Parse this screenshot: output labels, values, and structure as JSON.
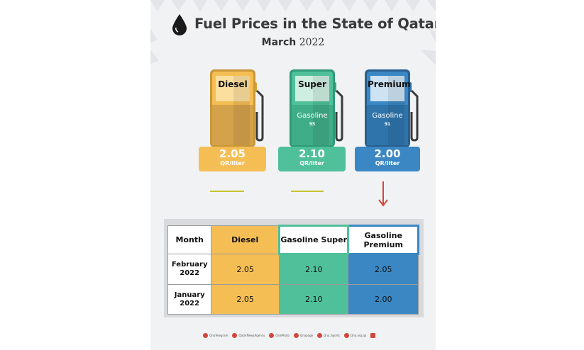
{
  "header": {
    "title": "Fuel Prices in the State of Qatar",
    "month": "March",
    "year": "2022"
  },
  "pumps": [
    {
      "name": "Diesel",
      "sub": "",
      "octane": "",
      "price": "2.05",
      "unit": "QR/liter",
      "color": "#f5be55"
    },
    {
      "name": "Super",
      "sub": "Gasoline",
      "octane": "95",
      "price": "2.10",
      "unit": "QR/liter",
      "color": "#4fc09a"
    },
    {
      "name": "Premium",
      "sub": "Gasoline",
      "octane": "91",
      "price": "2.00",
      "unit": "QR/liter",
      "color": "#3a87c3"
    }
  ],
  "table": {
    "headers": [
      "Month",
      "Diesel",
      "Gasoline Super",
      "Gasoline Premium"
    ],
    "rows": [
      {
        "month_line1": "February",
        "month_line2": "2022",
        "diesel": "2.05",
        "super": "2.10",
        "premium": "2.05"
      },
      {
        "month_line1": "January",
        "month_line2": "2022",
        "diesel": "2.05",
        "super": "2.10",
        "premium": "2.00"
      }
    ]
  },
  "trend": {
    "premium_direction": "down",
    "arrow_color": "#d2473d"
  },
  "social": [
    {
      "icon": "telegram-icon",
      "label": "QnaTelegram"
    },
    {
      "icon": "twitter-icon",
      "label": "QatarNewsAgency"
    },
    {
      "icon": "instagram-icon",
      "label": "QnaPhoto"
    },
    {
      "icon": "facebook-icon",
      "label": "Qnapage"
    },
    {
      "icon": "twitter-icon",
      "label": "Qna_Sports"
    },
    {
      "icon": "web-icon",
      "label": "Qna.org.qa"
    },
    {
      "icon": "qna-logo-icon",
      "label": ""
    }
  ]
}
